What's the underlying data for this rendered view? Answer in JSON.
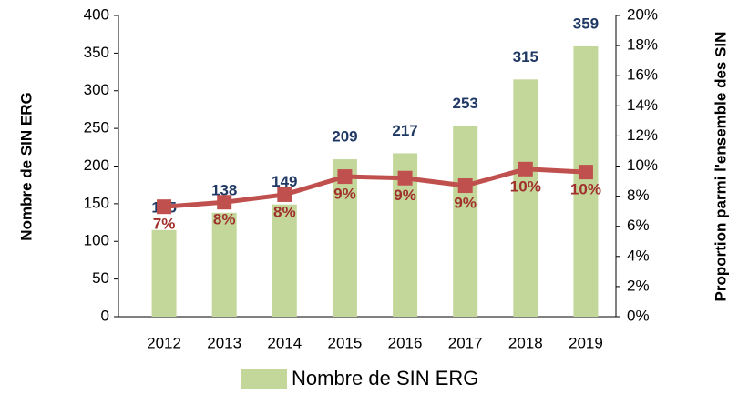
{
  "chart_data": {
    "type": "bar-line",
    "y_label": "Nombre de SIN ERG",
    "y2_label": "Proportion parmi l'ensemble des SIN",
    "categories": [
      "2012",
      "2013",
      "2014",
      "2015",
      "2016",
      "2017",
      "2018",
      "2019"
    ],
    "series": [
      {
        "name": "Nombre de SIN ERG",
        "type": "bar",
        "color": "#c4d79b",
        "label_color": "#1f3864",
        "values": [
          115,
          138,
          149,
          209,
          217,
          253,
          315,
          359
        ]
      },
      {
        "type": "line",
        "axis": "y2",
        "color": "#c0504d",
        "label_color": "#a0302c",
        "values": [
          7.3,
          7.6,
          8.1,
          9.3,
          9.2,
          8.7,
          9.8,
          9.6
        ],
        "value_labels": [
          "7%",
          "8%",
          "8%",
          "9%",
          "9%",
          "9%",
          "10%",
          "10%"
        ]
      }
    ],
    "ylim": [
      0,
      400
    ],
    "yticks": [
      0,
      50,
      100,
      150,
      200,
      250,
      300,
      350,
      400
    ],
    "y2lim": [
      0,
      20
    ],
    "y2ticks": [
      {
        "value": 0,
        "label": "0%"
      },
      {
        "value": 2,
        "label": "2%"
      },
      {
        "value": 4,
        "label": "4%"
      },
      {
        "value": 6,
        "label": "6%"
      },
      {
        "value": 8,
        "label": "8%"
      },
      {
        "value": 10,
        "label": "10%"
      },
      {
        "value": 12,
        "label": "12%"
      },
      {
        "value": 14,
        "label": "14%"
      },
      {
        "value": 16,
        "label": "16%"
      },
      {
        "value": 18,
        "label": "18%"
      },
      {
        "value": 20,
        "label": "20%"
      }
    ],
    "legend": "bottom"
  }
}
